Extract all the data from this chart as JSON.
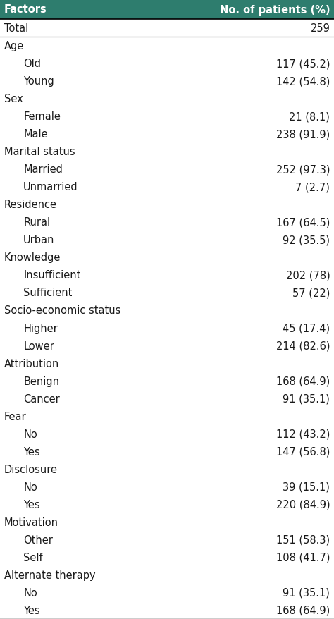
{
  "header": [
    "Factors",
    "No. of patients (%)"
  ],
  "rows": [
    {
      "label": "Total",
      "value": "259",
      "indent": false,
      "is_category": false
    },
    {
      "label": "Age",
      "value": "",
      "indent": false,
      "is_category": true
    },
    {
      "label": "Old",
      "value": "117 (45.2)",
      "indent": true,
      "is_category": false
    },
    {
      "label": "Young",
      "value": "142 (54.8)",
      "indent": true,
      "is_category": false
    },
    {
      "label": "Sex",
      "value": "",
      "indent": false,
      "is_category": true
    },
    {
      "label": "Female",
      "value": "21 (8.1)",
      "indent": true,
      "is_category": false
    },
    {
      "label": "Male",
      "value": "238 (91.9)",
      "indent": true,
      "is_category": false
    },
    {
      "label": "Marital status",
      "value": "",
      "indent": false,
      "is_category": true
    },
    {
      "label": "Married",
      "value": "252 (97.3)",
      "indent": true,
      "is_category": false
    },
    {
      "label": "Unmarried",
      "value": "7 (2.7)",
      "indent": true,
      "is_category": false
    },
    {
      "label": "Residence",
      "value": "",
      "indent": false,
      "is_category": true
    },
    {
      "label": "Rural",
      "value": "167 (64.5)",
      "indent": true,
      "is_category": false
    },
    {
      "label": "Urban",
      "value": "92 (35.5)",
      "indent": true,
      "is_category": false
    },
    {
      "label": "Knowledge",
      "value": "",
      "indent": false,
      "is_category": true
    },
    {
      "label": "Insufficient",
      "value": "202 (78)",
      "indent": true,
      "is_category": false
    },
    {
      "label": "Sufficient",
      "value": "57 (22)",
      "indent": true,
      "is_category": false
    },
    {
      "label": "Socio-economic status",
      "value": "",
      "indent": false,
      "is_category": true
    },
    {
      "label": "Higher",
      "value": "45 (17.4)",
      "indent": true,
      "is_category": false
    },
    {
      "label": "Lower",
      "value": "214 (82.6)",
      "indent": true,
      "is_category": false
    },
    {
      "label": "Attribution",
      "value": "",
      "indent": false,
      "is_category": true
    },
    {
      "label": "Benign",
      "value": "168 (64.9)",
      "indent": true,
      "is_category": false
    },
    {
      "label": "Cancer",
      "value": "91 (35.1)",
      "indent": true,
      "is_category": false
    },
    {
      "label": "Fear",
      "value": "",
      "indent": false,
      "is_category": true
    },
    {
      "label": "No",
      "value": "112 (43.2)",
      "indent": true,
      "is_category": false
    },
    {
      "label": "Yes",
      "value": "147 (56.8)",
      "indent": true,
      "is_category": false
    },
    {
      "label": "Disclosure",
      "value": "",
      "indent": false,
      "is_category": true
    },
    {
      "label": "No",
      "value": "39 (15.1)",
      "indent": true,
      "is_category": false
    },
    {
      "label": "Yes",
      "value": "220 (84.9)",
      "indent": true,
      "is_category": false
    },
    {
      "label": "Motivation",
      "value": "",
      "indent": false,
      "is_category": true
    },
    {
      "label": "Other",
      "value": "151 (58.3)",
      "indent": true,
      "is_category": false
    },
    {
      "label": "Self",
      "value": "108 (41.7)",
      "indent": true,
      "is_category": false
    },
    {
      "label": "Alternate therapy",
      "value": "",
      "indent": false,
      "is_category": true
    },
    {
      "label": "No",
      "value": "91 (35.1)",
      "indent": true,
      "is_category": false
    },
    {
      "label": "Yes",
      "value": "168 (64.9)",
      "indent": true,
      "is_category": false
    }
  ],
  "header_bg_color": "#2e7d6e",
  "header_text_color": "#ffffff",
  "bg_color": "#ffffff",
  "text_color": "#1a1a1a",
  "line_color": "#000000",
  "font_size": 10.5,
  "header_font_size": 10.5,
  "fig_width": 4.74,
  "fig_height": 8.79,
  "dpi": 100
}
